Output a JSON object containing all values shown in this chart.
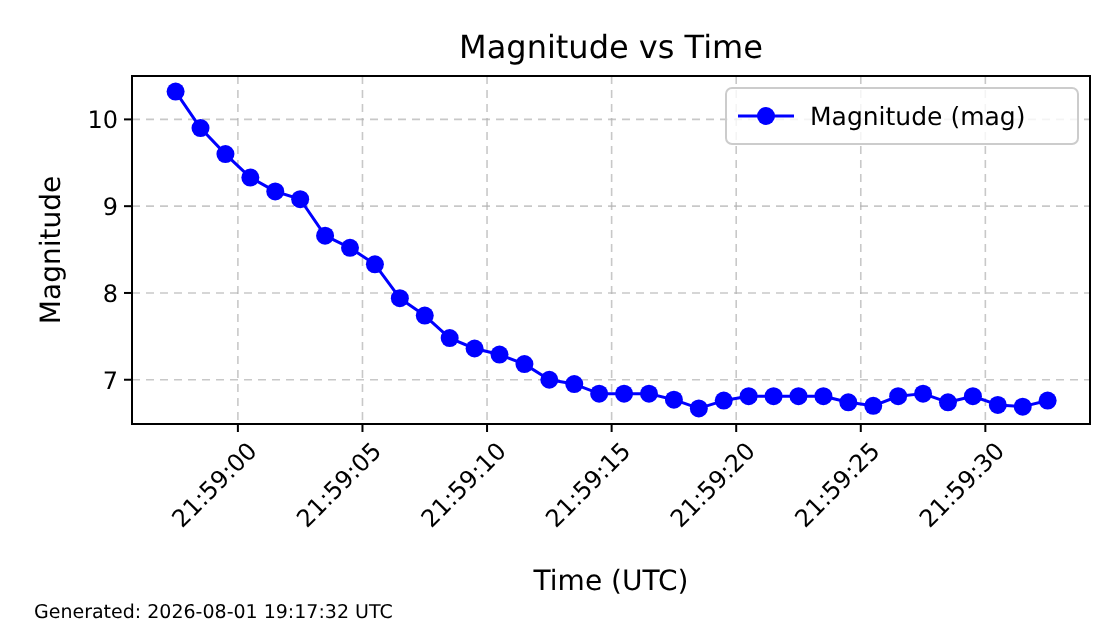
{
  "chart_data": {
    "type": "line",
    "title": "Magnitude vs Time",
    "xlabel": "Time (UTC)",
    "ylabel": "Magnitude",
    "annotations": [
      "Generated: 2026-08-01 19:17:32 UTC"
    ],
    "x": [
      21.98263889,
      21.98291667,
      21.98319444,
      21.98347222,
      21.98375,
      21.98402778,
      21.98430556,
      21.98458333,
      21.98486111,
      21.98513889,
      21.98541667,
      21.98569444,
      21.98597222,
      21.98625,
      21.98652778,
      21.98680556,
      21.98708333,
      21.98736111,
      21.98763889,
      21.98791667,
      21.98819444,
      21.98847222,
      21.98875,
      21.98902778,
      21.98930556,
      21.98958333,
      21.98986111,
      21.99013889,
      21.99041667,
      21.99069444,
      21.99097222,
      21.99125,
      21.99152778,
      21.99180556,
      21.99208333,
      21.99236111
    ],
    "series": [
      {
        "name": "Magnitude (mag)",
        "color": "#0000ff",
        "values": [
          10.32,
          9.9,
          9.6,
          9.33,
          9.17,
          9.08,
          8.66,
          8.52,
          8.33,
          7.94,
          7.74,
          7.48,
          7.36,
          7.29,
          7.18,
          7.0,
          6.95,
          6.84,
          6.84,
          6.84,
          6.77,
          6.67,
          6.76,
          6.81,
          6.81,
          6.81,
          6.81,
          6.74,
          6.7,
          6.81,
          6.84,
          6.74,
          6.81,
          6.71,
          6.69,
          6.76
        ]
      }
    ],
    "xlim": [
      21.98215278,
      21.99283333
    ],
    "xticks": [
      {
        "value": 21.98333333,
        "label": "21:59:00"
      },
      {
        "value": 21.98472222,
        "label": "21:59:05"
      },
      {
        "value": 21.98611111,
        "label": "21:59:10"
      },
      {
        "value": 21.9875,
        "label": "21:59:15"
      },
      {
        "value": 21.98888889,
        "label": "21:59:20"
      },
      {
        "value": 21.99027778,
        "label": "21:59:25"
      },
      {
        "value": 21.99166667,
        "label": "21:59:30"
      }
    ],
    "ylim": [
      6.49,
      10.5
    ],
    "yticks": [
      7,
      8,
      9,
      10
    ],
    "grid": true,
    "legend": "top right",
    "marker": "circle",
    "line_style": "solid"
  }
}
